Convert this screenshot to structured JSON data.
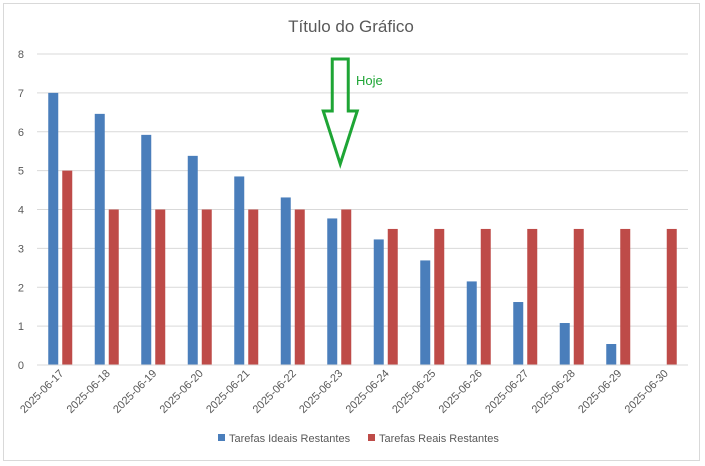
{
  "chart_data": {
    "type": "bar",
    "title": "Título do Gráfico",
    "categories": [
      "2025-06-17",
      "2025-06-18",
      "2025-06-19",
      "2025-06-20",
      "2025-06-21",
      "2025-06-22",
      "2025-06-23",
      "2025-06-24",
      "2025-06-25",
      "2025-06-26",
      "2025-06-27",
      "2025-06-28",
      "2025-06-29",
      "2025-06-30"
    ],
    "series": [
      {
        "name": "Tarefas Ideais Restantes",
        "color": "#4a7ebb",
        "values": [
          7,
          6.46,
          5.92,
          5.38,
          4.85,
          4.31,
          3.77,
          3.23,
          2.69,
          2.15,
          1.62,
          1.08,
          0.54,
          0
        ]
      },
      {
        "name": "Tarefas Reais Restantes",
        "color": "#be4b48",
        "values": [
          5,
          4,
          4,
          4,
          4,
          4,
          4,
          3.5,
          3.5,
          3.5,
          3.5,
          3.5,
          3.5,
          3.5
        ]
      }
    ],
    "ylim": [
      0,
      8
    ],
    "yticks": [
      0,
      1,
      2,
      3,
      4,
      5,
      6,
      7,
      8
    ],
    "grid": true,
    "legend": "bottom",
    "annotation": {
      "text": "Hoje",
      "category": "2025-06-23",
      "color": "#1ea535",
      "icon": "down-arrow-icon"
    }
  }
}
